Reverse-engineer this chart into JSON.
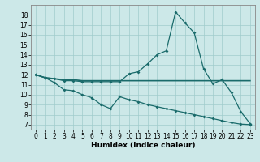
{
  "xlabel": "Humidex (Indice chaleur)",
  "xlim": [
    -0.5,
    23.5
  ],
  "ylim": [
    6.5,
    19
  ],
  "yticks": [
    7,
    8,
    9,
    10,
    11,
    12,
    13,
    14,
    15,
    16,
    17,
    18
  ],
  "xticks": [
    0,
    1,
    2,
    3,
    4,
    5,
    6,
    7,
    8,
    9,
    10,
    11,
    12,
    13,
    14,
    15,
    16,
    17,
    18,
    19,
    20,
    21,
    22,
    23
  ],
  "bg_color": "#cce8e8",
  "line_color": "#1a6b6b",
  "grid_color": "#a0cccc",
  "line1_x": [
    0,
    1,
    2,
    3,
    4,
    5,
    6,
    7,
    8,
    9,
    10,
    11,
    12,
    13,
    14,
    15,
    16,
    17,
    18,
    19,
    20,
    21,
    22,
    23
  ],
  "line1_y": [
    12,
    11.7,
    11.6,
    11.4,
    11.4,
    11.3,
    11.3,
    11.3,
    11.3,
    11.3,
    12.1,
    12.3,
    13.1,
    14.0,
    14.4,
    18.3,
    17.2,
    16.2,
    12.6,
    11.1,
    11.5,
    10.2,
    8.3,
    7.1
  ],
  "line2_x": [
    0,
    1,
    2,
    3,
    4,
    5,
    6,
    7,
    8,
    9,
    10,
    11,
    12,
    13,
    14,
    15,
    16,
    17,
    18,
    19,
    20,
    21,
    22,
    23
  ],
  "line2_y": [
    12.0,
    11.7,
    11.6,
    11.5,
    11.5,
    11.4,
    11.4,
    11.4,
    11.4,
    11.4,
    11.4,
    11.4,
    11.4,
    11.4,
    11.4,
    11.4,
    11.4,
    11.4,
    11.4,
    11.4,
    11.4,
    11.4,
    11.4,
    11.4
  ],
  "line3_x": [
    0,
    1,
    2,
    3,
    4,
    5,
    6,
    7,
    8,
    9,
    10,
    11,
    12,
    13,
    14,
    15,
    16,
    17,
    18,
    19,
    20,
    21,
    22,
    23
  ],
  "line3_y": [
    12,
    11.7,
    11.2,
    10.5,
    10.4,
    10.0,
    9.7,
    9.0,
    8.6,
    9.8,
    9.5,
    9.3,
    9.0,
    8.8,
    8.6,
    8.4,
    8.2,
    8.0,
    7.8,
    7.6,
    7.4,
    7.2,
    7.05,
    7.0
  ],
  "tick_fontsize": 5.5,
  "xlabel_fontsize": 6.5,
  "marker_size": 2.0,
  "linewidth": 0.9
}
